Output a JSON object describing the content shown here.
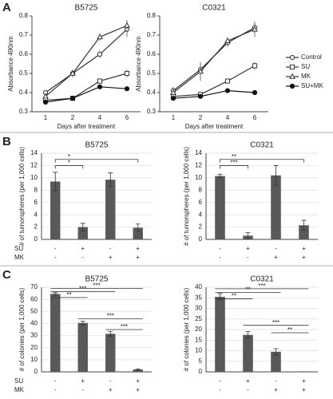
{
  "panel_labels": [
    "A",
    "B",
    "C"
  ],
  "chart_data": [
    {
      "type": "line",
      "title": "B5725",
      "x_label": "Days after treatment",
      "y_label": "Absorbance 490nm",
      "categories": [
        "1",
        "2",
        "4",
        "6"
      ],
      "ylim": [
        0.3,
        0.8
      ],
      "yticks": [
        0.3,
        0.4,
        0.5,
        0.6,
        0.7,
        0.8
      ],
      "legend": "right",
      "series": [
        {
          "name": "Control",
          "marker": "circle-open",
          "color": "#333333",
          "values": [
            0.4,
            0.5,
            0.6,
            0.73
          ],
          "errors": [
            0.01,
            0.02,
            0.02,
            0.04
          ]
        },
        {
          "name": "SU",
          "marker": "square-open",
          "color": "#333333",
          "values": [
            0.36,
            0.37,
            0.46,
            0.5
          ],
          "errors": [
            0.01,
            0.01,
            0.01,
            0.02
          ]
        },
        {
          "name": "MK",
          "marker": "triangle-open",
          "color": "#333333",
          "values": [
            0.38,
            0.5,
            0.69,
            0.75
          ],
          "errors": [
            0.01,
            0.02,
            0.02,
            0.03
          ]
        },
        {
          "name": "SU+MK",
          "marker": "circle-filled",
          "color": "#111111",
          "values": [
            0.35,
            0.37,
            0.43,
            0.42
          ],
          "errors": [
            0.01,
            0.01,
            0.01,
            0.01
          ]
        }
      ]
    },
    {
      "type": "line",
      "title": "C0321",
      "x_label": "Days after treatment",
      "y_label": "Absorbance 490nm",
      "categories": [
        "1",
        "2",
        "4",
        "6"
      ],
      "ylim": [
        0.3,
        0.8
      ],
      "yticks": [
        0.3,
        0.4,
        0.5,
        0.6,
        0.7,
        0.8
      ],
      "series": [
        {
          "marker": "circle-open",
          "color": "#333333",
          "values": [
            0.41,
            0.52,
            0.66,
            0.74
          ],
          "errors": [
            0.02,
            0.03,
            0.02,
            0.03
          ]
        },
        {
          "marker": "square-open",
          "color": "#333333",
          "values": [
            0.38,
            0.39,
            0.46,
            0.54
          ],
          "errors": [
            0.01,
            0.01,
            0.01,
            0.02
          ]
        },
        {
          "marker": "triangle-open",
          "color": "#333333",
          "values": [
            0.4,
            0.51,
            0.67,
            0.73
          ],
          "errors": [
            0.02,
            0.05,
            0.02,
            0.04
          ]
        },
        {
          "marker": "circle-filled",
          "color": "#111111",
          "values": [
            0.37,
            0.38,
            0.41,
            0.4
          ],
          "errors": [
            0.01,
            0.01,
            0.01,
            0.01
          ]
        }
      ]
    },
    {
      "type": "bar",
      "title": "B5725",
      "y_label": "# of tumorspheres (per 1,000 cells)",
      "color": "#595959",
      "grid": true,
      "categories": [
        null,
        null,
        null,
        null
      ],
      "values": [
        9.4,
        2.0,
        9.7,
        1.9
      ],
      "errors": [
        1.5,
        0.6,
        1.1,
        0.6
      ],
      "ylim": [
        0,
        14
      ],
      "yticks": [
        0,
        2,
        4,
        6,
        8,
        10,
        12,
        14
      ],
      "bracket_style": "bracket",
      "annotations": [
        {
          "from": 0,
          "to": 1,
          "y": 12.0,
          "label": "*"
        },
        {
          "from": 0,
          "to": 3,
          "y": 13.0,
          "label": "*"
        }
      ],
      "treatments": [
        {
          "name": "SU",
          "signs": [
            "-",
            "+",
            "-",
            "+"
          ]
        },
        {
          "name": "MK",
          "signs": [
            "-",
            "-",
            "+",
            "+"
          ]
        }
      ]
    },
    {
      "type": "bar",
      "title": "C0321",
      "y_label": "# of tumorspheres (per 1,000 cells)",
      "color": "#595959",
      "grid": true,
      "categories": [
        null,
        null,
        null,
        null
      ],
      "values": [
        10.3,
        0.6,
        10.4,
        2.3
      ],
      "errors": [
        0.3,
        0.5,
        1.6,
        0.8
      ],
      "ylim": [
        0,
        14
      ],
      "yticks": [
        0,
        2,
        4,
        6,
        8,
        10,
        12,
        14
      ],
      "bracket_style": "bracket",
      "annotations": [
        {
          "from": 0,
          "to": 1,
          "y": 12.0,
          "label": "***"
        },
        {
          "from": 0,
          "to": 3,
          "y": 13.0,
          "label": "**"
        }
      ]
    },
    {
      "type": "bar",
      "title": "B5725",
      "y_label": "# of colonies (per 1,000 cells)",
      "color": "#595959",
      "grid": true,
      "categories": [
        null,
        null,
        null,
        null
      ],
      "values": [
        64.5,
        40.5,
        31.5,
        2.0
      ],
      "errors": [
        1.0,
        1.5,
        2.0,
        0.5
      ],
      "ylim": [
        0,
        70
      ],
      "yticks": [
        0,
        10,
        20,
        30,
        40,
        50,
        60,
        70
      ],
      "bracket_style": "line",
      "annotations": [
        {
          "from": 0,
          "to": 3,
          "y": 69,
          "label": "***"
        },
        {
          "from": 0,
          "to": 2,
          "y": 66.5,
          "label": "***"
        },
        {
          "from": 0,
          "to": 1,
          "y": 61.5,
          "label": "**"
        },
        {
          "from": 1,
          "to": 3,
          "y": 44,
          "label": "***"
        },
        {
          "from": 2,
          "to": 3,
          "y": 35,
          "label": "***"
        }
      ],
      "treatments": [
        {
          "name": "SU",
          "signs": [
            "-",
            "+",
            "-",
            "+"
          ]
        },
        {
          "name": "MK",
          "signs": [
            "-",
            "-",
            "+",
            "+"
          ]
        }
      ]
    },
    {
      "type": "bar",
      "title": "C0321",
      "y_label": "# of colonies (per 1,000 cells)",
      "color": "#595959",
      "grid": true,
      "categories": [
        null,
        null,
        null,
        null
      ],
      "values": [
        35.5,
        17.5,
        9.5,
        0
      ],
      "errors": [
        1.5,
        1.5,
        1.5,
        0
      ],
      "ylim": [
        0,
        40
      ],
      "yticks": [
        0,
        5,
        10,
        15,
        20,
        25,
        30,
        35,
        40
      ],
      "bracket_style": "line",
      "annotations": [
        {
          "from": 0,
          "to": 3,
          "y": 39.3,
          "label": "***"
        },
        {
          "from": 0,
          "to": 2,
          "y": 37.5,
          "label": "**"
        },
        {
          "from": 0,
          "to": 1,
          "y": 34.5,
          "label": "**"
        },
        {
          "from": 1,
          "to": 3,
          "y": 22,
          "label": "***"
        },
        {
          "from": 2,
          "to": 3,
          "y": 18.5,
          "label": "**"
        }
      ]
    }
  ]
}
